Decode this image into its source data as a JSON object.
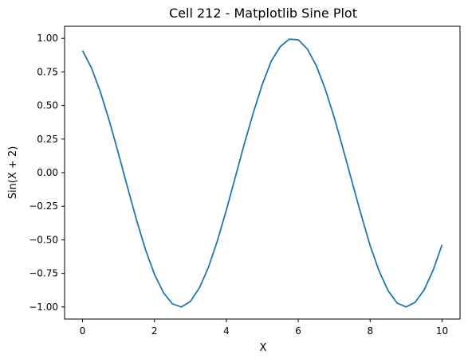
{
  "chart_data": {
    "type": "line",
    "title": "Cell 212 - Matplotlib Sine Plot",
    "xlabel": "X",
    "ylabel": "Sin(X + 2)",
    "xlim": [
      -0.5,
      10.5
    ],
    "ylim": [
      -1.09,
      1.09
    ],
    "grid": false,
    "x_ticks": [
      "0",
      "2",
      "4",
      "6",
      "8",
      "10"
    ],
    "y_ticks": [
      "1.00",
      "0.75",
      "0.50",
      "0.25",
      "0.00",
      "−0.25",
      "−0.50",
      "−0.75",
      "−1.00"
    ],
    "line_color": "#1f77b4",
    "series": [
      {
        "x": [
          0,
          0.25,
          0.5,
          0.75,
          1,
          1.25,
          1.5,
          1.75,
          2,
          2.25,
          2.5,
          2.75,
          3,
          3.25,
          3.5,
          3.75,
          4,
          4.25,
          4.5,
          4.75,
          5,
          5.25,
          5.5,
          5.75,
          6,
          6.25,
          6.5,
          6.75,
          7,
          7.25,
          7.5,
          7.75,
          8,
          8.25,
          8.5,
          8.75,
          9,
          9.25,
          9.5,
          9.75,
          10
        ],
        "values": [
          0.909,
          0.778,
          0.598,
          0.381,
          0.141,
          -0.108,
          -0.351,
          -0.572,
          -0.757,
          -0.894,
          -0.977,
          -1.0,
          -0.959,
          -0.858,
          -0.706,
          -0.508,
          -0.279,
          -0.033,
          0.215,
          0.446,
          0.657,
          0.831,
          0.938,
          0.994,
          0.989,
          0.922,
          0.798,
          0.623,
          0.412,
          0.174,
          -0.072,
          -0.315,
          -0.544,
          -0.733,
          -0.879,
          -0.971,
          -1.0,
          -0.966,
          -0.874,
          -0.728,
          -0.537
        ]
      }
    ]
  }
}
